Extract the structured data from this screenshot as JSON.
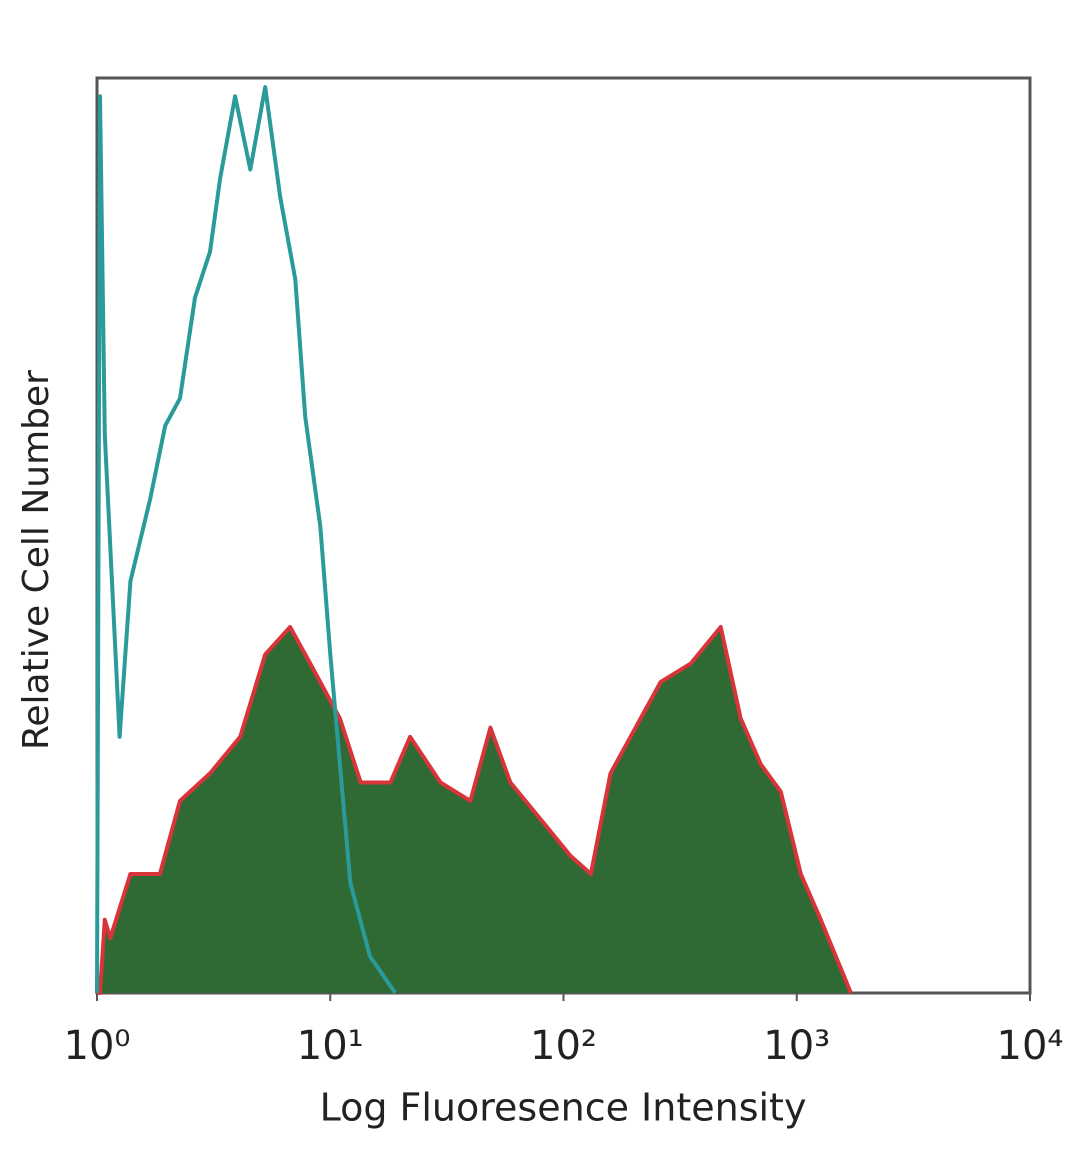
{
  "chart_data": {
    "type": "histogram-overlay",
    "xlabel": "Log Fluoresence Intensity",
    "ylabel": "Relative Cell Number",
    "xscale": "log",
    "xlim": [
      1,
      10000
    ],
    "ylim": [
      0,
      100
    ],
    "xticks": [
      {
        "value": 1,
        "label": "10⁰"
      },
      {
        "value": 10,
        "label": "10¹"
      },
      {
        "value": 100,
        "label": "10²"
      },
      {
        "value": 1000,
        "label": "10³"
      },
      {
        "value": 10000,
        "label": "10⁴"
      }
    ],
    "series": [
      {
        "style": "line",
        "color": "#2a9a9a",
        "x": [
          1.0,
          1.03,
          1.08,
          1.25,
          1.39,
          1.69,
          1.96,
          2.27,
          2.63,
          3.05,
          3.37,
          3.91,
          4.54,
          5.26,
          6.1,
          7.08,
          7.81,
          9.06,
          10.0,
          11.0,
          12.2,
          14.8,
          19.0
        ],
        "values": [
          0,
          98,
          61,
          28,
          45,
          54,
          62,
          65,
          76,
          81,
          89,
          98,
          90,
          99,
          87,
          78,
          63,
          51,
          37,
          25,
          12,
          4,
          0
        ]
      },
      {
        "style": "area",
        "color": "#2f6a35",
        "edge_color": "#d8343a",
        "x": [
          1.0,
          1.03,
          1.08,
          1.14,
          1.39,
          1.86,
          2.27,
          3.05,
          4.11,
          5.26,
          6.73,
          8.21,
          11.0,
          13.5,
          18.1,
          22.0,
          29.7,
          39.9,
          48.6,
          59.2,
          79.7,
          107,
          131,
          159,
          214,
          261,
          351,
          472,
          575,
          701,
          854,
          1041,
          1268,
          1706
        ],
        "values": [
          0,
          0,
          8,
          6,
          13,
          13,
          21,
          24,
          28,
          37,
          40,
          36,
          30,
          23,
          23,
          28,
          23,
          21,
          29,
          23,
          19,
          15,
          13,
          24,
          30,
          34,
          36,
          40,
          30,
          25,
          22,
          13,
          8,
          0
        ]
      }
    ]
  }
}
